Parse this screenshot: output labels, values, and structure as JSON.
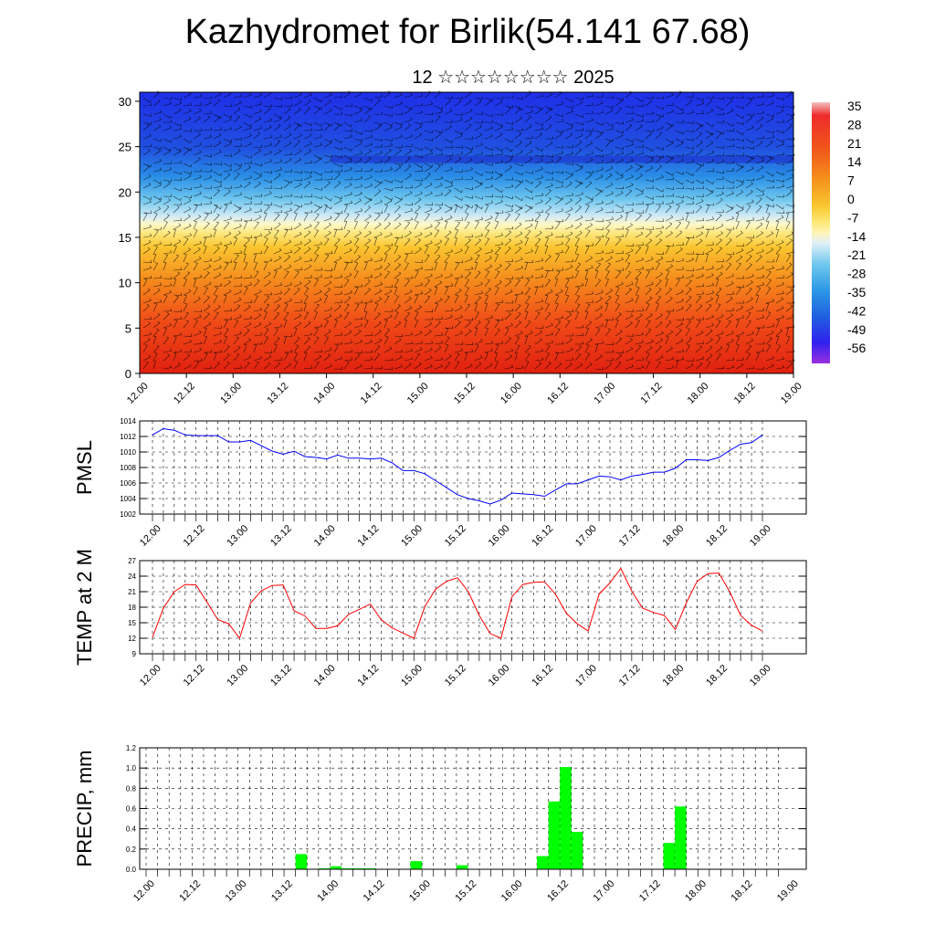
{
  "title": "Kazhydromet for Birlik(54.141 67.68)",
  "subtitle": "12 ☆☆☆☆☆☆☆☆ 2025",
  "time_labels": [
    "12.00",
    "12.12",
    "13.00",
    "13.12",
    "14.00",
    "14.12",
    "15.00",
    "15.12",
    "16.00",
    "16.12",
    "17.00",
    "17.12",
    "18.00",
    "18.12",
    "19.00"
  ],
  "chart_data": [
    {
      "type": "heatmap",
      "title": "",
      "ylabel": "",
      "ylim": [
        0,
        31
      ],
      "yticks": [
        0,
        5,
        10,
        15,
        20,
        25,
        30
      ],
      "colorbar": {
        "labels": [
          "35",
          "28",
          "21",
          "14",
          "7",
          "0",
          "-7",
          "-14",
          "-21",
          "-28",
          "-35",
          "-42",
          "-49",
          "-56"
        ],
        "colors": [
          "#f2b8b8",
          "#ee3030",
          "#f05a1a",
          "#f5901a",
          "#f8c22a",
          "#fce86a",
          "#fff6b0",
          "#d6eef8",
          "#7fd0f0",
          "#30a8e8",
          "#2070e0",
          "#2840e0",
          "#3820f0",
          "#8a2be2"
        ]
      },
      "description_values": "temperature cross-section with wind barbs; warm (red/orange) near surface, cold (blue) aloft"
    },
    {
      "type": "line",
      "ylabel": "PMSL",
      "ylim": [
        1002,
        1014
      ],
      "yticks": [
        1002,
        1004,
        1006,
        1008,
        1010,
        1012,
        1014
      ],
      "color": "#0000ff",
      "values": [
        1012.2,
        1013.0,
        1012.8,
        1012.2,
        1012.1,
        1012.1,
        1012.1,
        1011.3,
        1011.3,
        1011.5,
        1010.8,
        1010.1,
        1009.7,
        1010.1,
        1009.4,
        1009.3,
        1009.1,
        1009.6,
        1009.2,
        1009.2,
        1009.1,
        1009.2,
        1008.6,
        1007.6,
        1007.6,
        1007.2,
        1006.3,
        1005.4,
        1004.5,
        1004.0,
        1003.7,
        1003.3,
        1003.8,
        1004.7,
        1004.6,
        1004.5,
        1004.3,
        1005.1,
        1005.9,
        1005.9,
        1006.4,
        1006.9,
        1006.8,
        1006.4,
        1006.9,
        1007.1,
        1007.4,
        1007.4,
        1007.9,
        1009.0,
        1009.0,
        1008.9,
        1009.3,
        1010.2,
        1011.0,
        1011.2,
        1012.2
      ]
    },
    {
      "type": "line",
      "ylabel": "TEMP at 2 M",
      "ylim": [
        9,
        27
      ],
      "yticks": [
        9,
        12,
        15,
        18,
        21,
        24,
        27
      ],
      "color": "#ff0000",
      "values": [
        12.2,
        17.8,
        21.0,
        22.4,
        22.3,
        19.0,
        15.6,
        14.8,
        12.0,
        18.8,
        21.2,
        22.2,
        22.3,
        17.3,
        16.3,
        13.9,
        13.9,
        14.4,
        16.6,
        17.6,
        18.6,
        15.6,
        14.0,
        13.0,
        12.0,
        18.1,
        21.5,
        23.0,
        23.7,
        21.0,
        16.4,
        12.9,
        12.0,
        20.0,
        22.4,
        22.8,
        22.9,
        20.5,
        16.8,
        14.8,
        13.4,
        20.5,
        22.7,
        25.5,
        21.1,
        17.8,
        17.0,
        16.4,
        13.7,
        18.8,
        23.0,
        24.5,
        24.6,
        21.0,
        16.4,
        14.5,
        13.4
      ]
    },
    {
      "type": "bar",
      "ylabel": "PRECIP, mm",
      "ylim": [
        0,
        1.2
      ],
      "yticks": [
        "0.0",
        "0.2",
        "0.4",
        "0.6",
        "0.8",
        "1.0",
        "1.2"
      ],
      "color": "#00ff00",
      "values": [
        0,
        0,
        0,
        0,
        0,
        0,
        0,
        0,
        0,
        0,
        0,
        0,
        0,
        0.15,
        0,
        0.01,
        0.03,
        0.01,
        0.01,
        0.01,
        0,
        0,
        0,
        0.08,
        0,
        0,
        0,
        0.04,
        0,
        0,
        0,
        0,
        0,
        0,
        0.13,
        0.67,
        1.01,
        0.37,
        0,
        0,
        0,
        0,
        0,
        0,
        0,
        0.26,
        0.62,
        0,
        0,
        0,
        0,
        0,
        0,
        0,
        0,
        0
      ]
    }
  ]
}
